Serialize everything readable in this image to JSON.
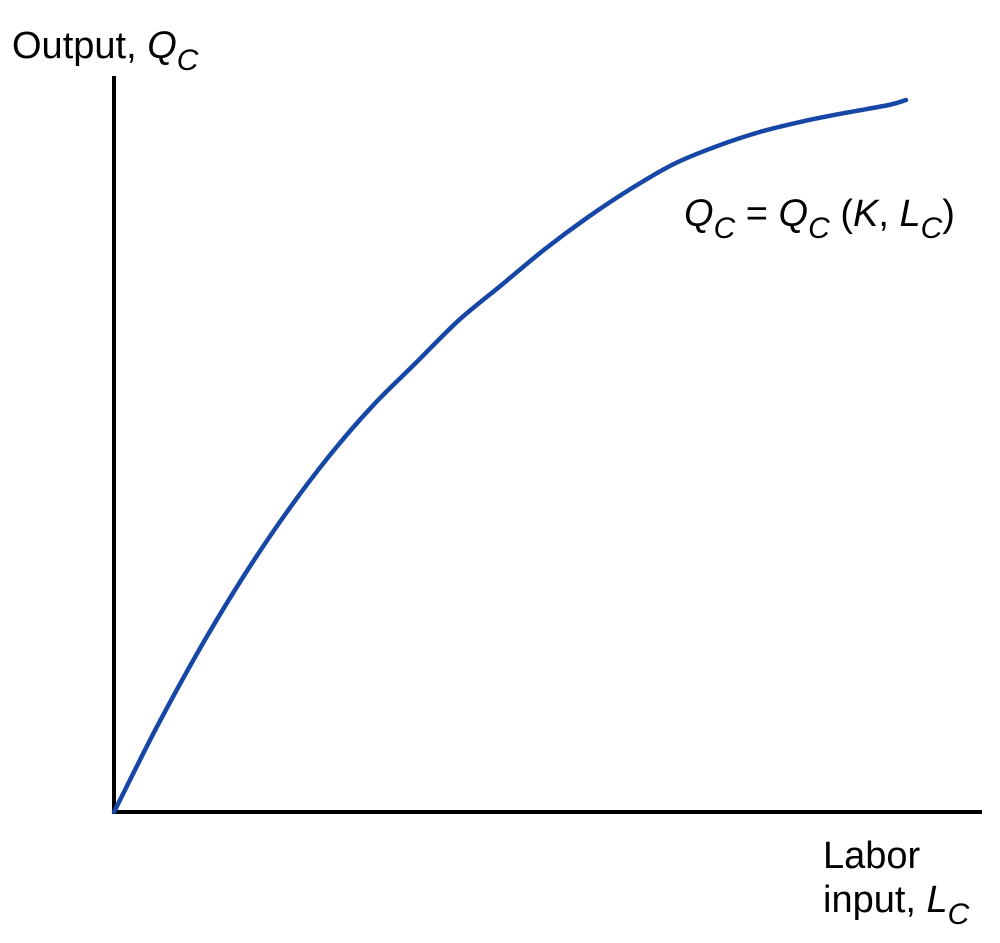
{
  "chart_data": {
    "type": "line",
    "title": "",
    "ylabel": {
      "text": "Output, ",
      "var": "Q",
      "sub": "C"
    },
    "xlabel": {
      "line1": "Labor",
      "line2": "input, ",
      "var": "L",
      "sub": "C"
    },
    "annotation": {
      "lhs_var": "Q",
      "lhs_sub": "C",
      "equals": " = ",
      "rhs_var": "Q",
      "rhs_sub": "C",
      "open": " (",
      "arg1": "K",
      "comma": ", ",
      "arg2_var": "L",
      "arg2_sub": "C",
      "close": ")"
    },
    "xlim": [
      0,
      10
    ],
    "ylim": [
      0,
      10
    ],
    "grid": false,
    "legend": "none",
    "series": [
      {
        "color": "#1747a6",
        "x": [
          0,
          0.5,
          1,
          1.5,
          2,
          2.5,
          3,
          3.5,
          4,
          4.5,
          5,
          5.5,
          6,
          6.5,
          7,
          7.5,
          8,
          8.5,
          9,
          9.2
        ],
        "y": [
          0,
          1.2,
          2.3,
          3.3,
          4.2,
          5.0,
          5.7,
          6.3,
          6.9,
          7.4,
          7.9,
          8.35,
          8.75,
          9.1,
          9.35,
          9.55,
          9.7,
          9.82,
          9.93,
          10.0
        ]
      }
    ]
  }
}
